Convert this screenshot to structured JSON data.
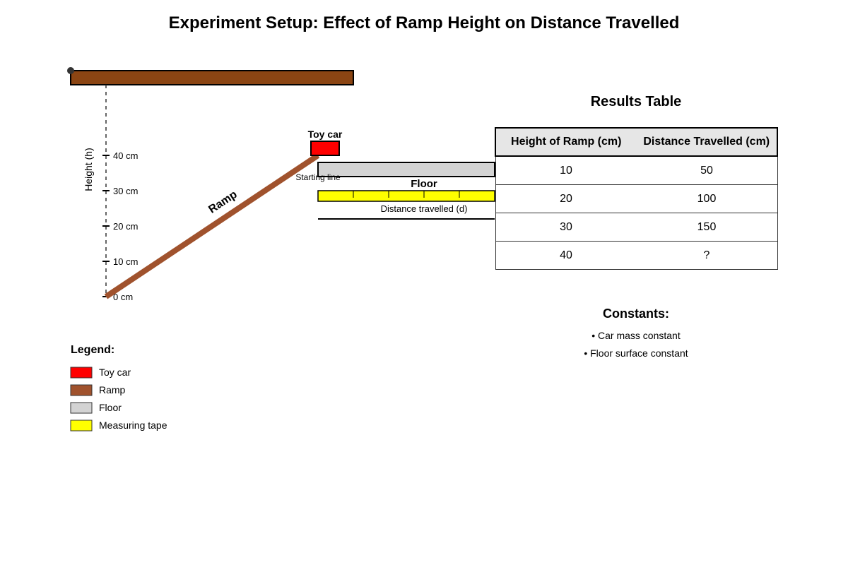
{
  "title": "Experiment Setup: Effect of Ramp Height on Distance Travelled",
  "diagram": {
    "height_axis_label": "Height (h)",
    "height_ticks": [
      "0 cm",
      "10 cm",
      "20 cm",
      "30 cm",
      "40 cm"
    ],
    "ramp_label": "Ramp",
    "car_label": "Toy car",
    "starting_line_label": "Starting line",
    "floor_label": "Floor",
    "distance_label": "Distance travelled (d)"
  },
  "results": {
    "title": "Results Table",
    "columns": [
      "Height of Ramp (cm)",
      "Distance Travelled (cm)"
    ],
    "rows": [
      [
        "10",
        "50"
      ],
      [
        "20",
        "100"
      ],
      [
        "30",
        "150"
      ],
      [
        "40",
        "?"
      ]
    ]
  },
  "constants": {
    "title": "Constants:",
    "items": [
      "• Car mass constant",
      "• Floor surface constant"
    ]
  },
  "legend": {
    "title": "Legend:",
    "items": [
      {
        "label": "Toy car",
        "color": "#ff0000"
      },
      {
        "label": "Ramp",
        "color": "#a0522d"
      },
      {
        "label": "Floor",
        "color": "#d3d3d3"
      },
      {
        "label": "Measuring tape",
        "color": "#ffff00"
      }
    ]
  },
  "colors": {
    "car": "#ff0000",
    "ramp": "#a0522d",
    "platform": "#8b4513",
    "floor": "#d3d3d3",
    "tape": "#ffff00"
  }
}
